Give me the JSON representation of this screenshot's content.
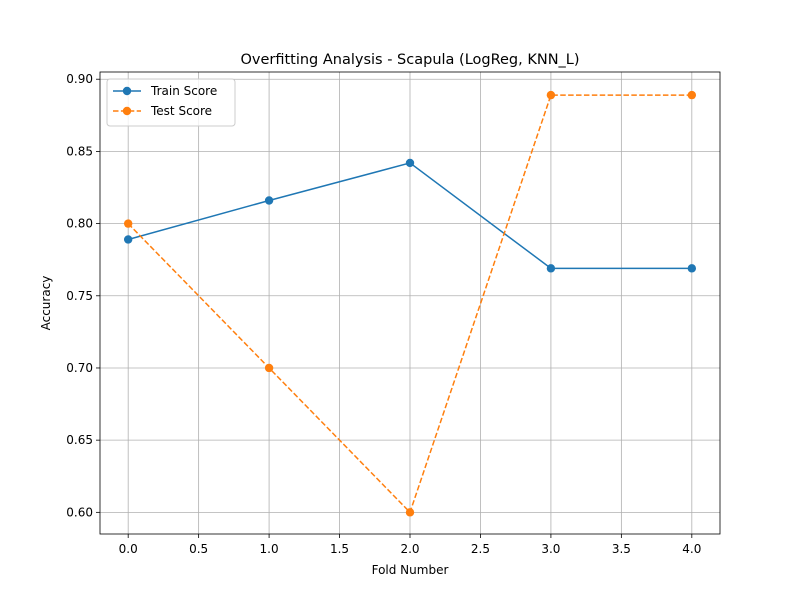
{
  "chart_data": {
    "type": "line",
    "title": "Overfitting Analysis - Scapula (LogReg, KNN_L)",
    "xlabel": "Fold Number",
    "ylabel": "Accuracy",
    "x": [
      0,
      1,
      2,
      3,
      4
    ],
    "xlim": [
      -0.2,
      4.2
    ],
    "ylim": [
      0.585,
      0.905
    ],
    "xticks": [
      0.0,
      0.5,
      1.0,
      1.5,
      2.0,
      2.5,
      3.0,
      3.5,
      4.0
    ],
    "xtick_labels": [
      "0.0",
      "0.5",
      "1.0",
      "1.5",
      "2.0",
      "2.5",
      "3.0",
      "3.5",
      "4.0"
    ],
    "yticks": [
      0.6,
      0.65,
      0.7,
      0.75,
      0.8,
      0.85,
      0.9
    ],
    "ytick_labels": [
      "0.60",
      "0.65",
      "0.70",
      "0.75",
      "0.80",
      "0.85",
      "0.90"
    ],
    "grid": true,
    "legend_position": "upper-left",
    "series": [
      {
        "name": "Train Score",
        "values": [
          0.789,
          0.816,
          0.842,
          0.769,
          0.769
        ],
        "color": "#1f77b4",
        "line_style": "solid",
        "marker": "circle"
      },
      {
        "name": "Test Score",
        "values": [
          0.8,
          0.7,
          0.6,
          0.889,
          0.889
        ],
        "color": "#ff7f0e",
        "line_style": "dashed",
        "marker": "circle"
      }
    ]
  }
}
